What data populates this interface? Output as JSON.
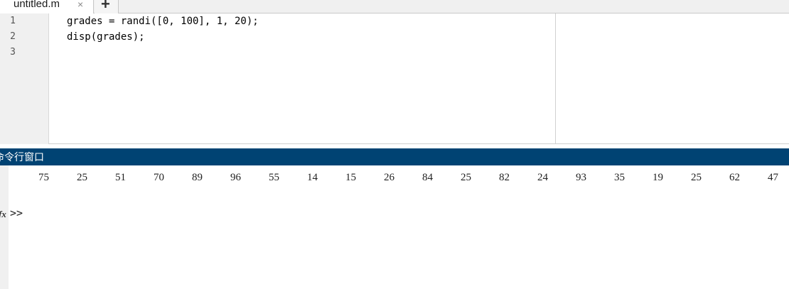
{
  "editor": {
    "tab": {
      "label": "untitled.m",
      "close": "×"
    },
    "add_tab": "+",
    "lines": [
      {
        "number": "1",
        "code": "grades = randi([0, 100], 1, 20);"
      },
      {
        "number": "2",
        "code": "disp(grades);"
      },
      {
        "number": "3",
        "code": ""
      }
    ]
  },
  "command_window": {
    "title": "命令行窗口",
    "output": [
      75,
      25,
      51,
      70,
      89,
      96,
      55,
      14,
      15,
      26,
      84,
      25,
      82,
      24,
      93,
      35,
      19,
      25,
      62,
      47
    ],
    "fx": "fx",
    "prompt": ">>"
  }
}
